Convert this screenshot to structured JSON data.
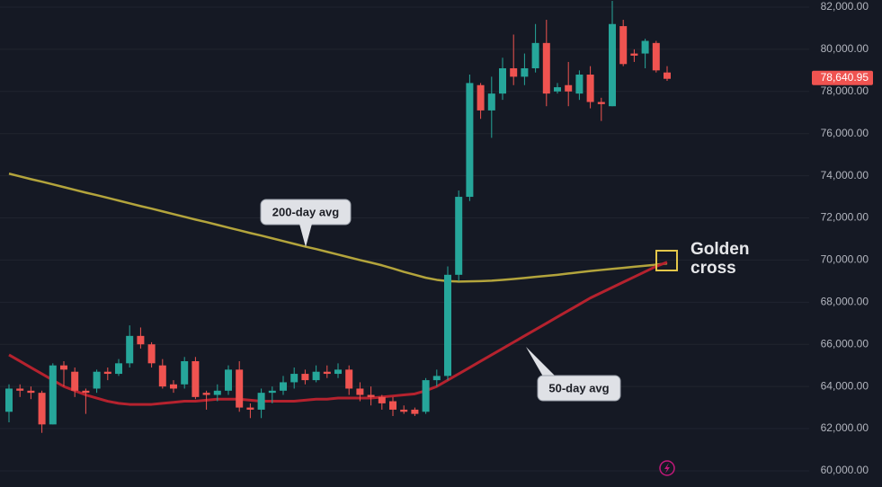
{
  "chart_data": {
    "type": "candlestick",
    "categories": [
      null,
      null,
      null,
      null,
      null,
      null,
      null,
      null,
      null,
      null,
      null,
      null,
      null,
      null,
      null,
      null,
      null,
      null,
      null,
      null,
      null,
      null,
      null,
      null,
      null,
      null,
      null,
      null,
      null,
      null,
      null,
      null,
      null,
      null,
      null,
      null,
      null,
      null,
      null,
      null,
      null,
      null,
      null,
      null,
      null,
      null,
      null,
      null,
      null,
      null,
      null,
      null,
      null,
      null,
      null,
      null,
      null,
      null,
      null,
      null,
      null
    ],
    "open": [
      62800,
      63900,
      63800,
      63700,
      62200,
      65000,
      64700,
      63800,
      63900,
      64700,
      64600,
      65100,
      66400,
      66000,
      65000,
      64100,
      64100,
      65200,
      63700,
      63600,
      63800,
      64800,
      63000,
      62900,
      63700,
      63800,
      64200,
      64600,
      64300,
      64700,
      64600,
      64800,
      63900,
      63600,
      63500,
      63300,
      62900,
      62900,
      62800,
      64300,
      64500,
      69300,
      73000,
      78300,
      77100,
      77900,
      79100,
      78700,
      79100,
      80300,
      78000,
      78300,
      77900,
      78800,
      77500,
      77300,
      81100,
      79800,
      79800,
      80300,
      78900
    ],
    "high": [
      64100,
      64100,
      64000,
      63800,
      65100,
      65200,
      64900,
      63900,
      64800,
      64900,
      65300,
      66900,
      66800,
      66100,
      65300,
      64300,
      65400,
      65400,
      63800,
      64100,
      65000,
      65200,
      63200,
      63900,
      64000,
      64500,
      64900,
      64800,
      65000,
      65000,
      65100,
      65000,
      64200,
      64000,
      63600,
      63500,
      63100,
      63000,
      64400,
      64800,
      69700,
      73300,
      78800,
      78400,
      78700,
      79600,
      80700,
      79800,
      81200,
      81400,
      78400,
      79400,
      79000,
      79200,
      77700,
      82300,
      81400,
      80000,
      80500,
      80400,
      79200
    ],
    "low": [
      62300,
      63500,
      63400,
      61800,
      62200,
      64000,
      63500,
      62700,
      63700,
      64300,
      64500,
      64900,
      65800,
      64900,
      63900,
      63700,
      63900,
      63400,
      62900,
      63300,
      63600,
      62800,
      62500,
      62500,
      63200,
      63600,
      63900,
      64100,
      64200,
      64400,
      64400,
      63600,
      63300,
      63100,
      62900,
      62600,
      62700,
      62600,
      62700,
      64000,
      64300,
      69000,
      72800,
      76700,
      75800,
      77600,
      78300,
      78300,
      78900,
      77300,
      77900,
      77300,
      77600,
      77200,
      76600,
      77300,
      79200,
      79400,
      79100,
      78900,
      78500
    ],
    "close": [
      63900,
      63800,
      63700,
      62200,
      65000,
      64800,
      63800,
      63700,
      64700,
      64600,
      65100,
      66400,
      66000,
      65100,
      64000,
      63900,
      65200,
      63500,
      63600,
      63800,
      64800,
      63000,
      62900,
      63700,
      63800,
      64200,
      64600,
      64300,
      64700,
      64600,
      64800,
      63900,
      63600,
      63500,
      63200,
      62900,
      62800,
      62700,
      64300,
      64500,
      69300,
      73000,
      78400,
      77100,
      77900,
      79100,
      78700,
      79100,
      80300,
      77900,
      78200,
      78000,
      78800,
      77500,
      77400,
      81200,
      79300,
      79700,
      80400,
      79000,
      78600
    ],
    "up_color": "#26a69a",
    "down_color": "#ef5350",
    "series": [
      {
        "name": "200-day avg",
        "color": "#b3a43c",
        "values": [
          74100,
          73970,
          73840,
          73720,
          73590,
          73460,
          73330,
          73200,
          73080,
          72950,
          72820,
          72690,
          72560,
          72440,
          72310,
          72180,
          72050,
          71920,
          71800,
          71670,
          71540,
          71410,
          71280,
          71160,
          71030,
          70900,
          70770,
          70640,
          70520,
          70390,
          70260,
          70130,
          70000,
          69880,
          69750,
          69600,
          69440,
          69300,
          69160,
          69060,
          69000,
          68980,
          68990,
          69000,
          69020,
          69060,
          69100,
          69150,
          69200,
          69250,
          69300,
          69360,
          69420,
          69480,
          69530,
          69580,
          69630,
          69680,
          69730,
          69780,
          69840
        ]
      },
      {
        "name": "50-day avg",
        "color": "#b5222e",
        "values": [
          65500,
          65200,
          64900,
          64600,
          64300,
          64000,
          63800,
          63600,
          63450,
          63300,
          63200,
          63150,
          63150,
          63150,
          63200,
          63250,
          63300,
          63300,
          63350,
          63400,
          63400,
          63400,
          63350,
          63300,
          63300,
          63300,
          63300,
          63350,
          63400,
          63400,
          63450,
          63450,
          63450,
          63450,
          63500,
          63550,
          63600,
          63650,
          63800,
          64000,
          64300,
          64600,
          64900,
          65200,
          65500,
          65800,
          66100,
          66400,
          66700,
          67000,
          67300,
          67600,
          67900,
          68200,
          68450,
          68700,
          68950,
          69200,
          69450,
          69700,
          69900
        ]
      }
    ],
    "ylim": [
      59230,
      82340
    ],
    "yticks": [
      {
        "value": 60000,
        "label": "60,000.00"
      },
      {
        "value": 62000,
        "label": "62,000.00"
      },
      {
        "value": 64000,
        "label": "64,000.00"
      },
      {
        "value": 66000,
        "label": "66,000.00"
      },
      {
        "value": 68000,
        "label": "68,000.00"
      },
      {
        "value": 70000,
        "label": "70,000.00"
      },
      {
        "value": 72000,
        "label": "72,000.00"
      },
      {
        "value": 74000,
        "label": "74,000.00"
      },
      {
        "value": 76000,
        "label": "76,000.00"
      },
      {
        "value": 78000,
        "label": "78,000.00"
      },
      {
        "value": 80000,
        "label": "80,000.00"
      },
      {
        "value": 82000,
        "label": "82,000.00"
      }
    ],
    "grid": true,
    "last_price": {
      "value": 78640.95,
      "label": "78,640.95"
    },
    "annotation": "Golden cross"
  }
}
